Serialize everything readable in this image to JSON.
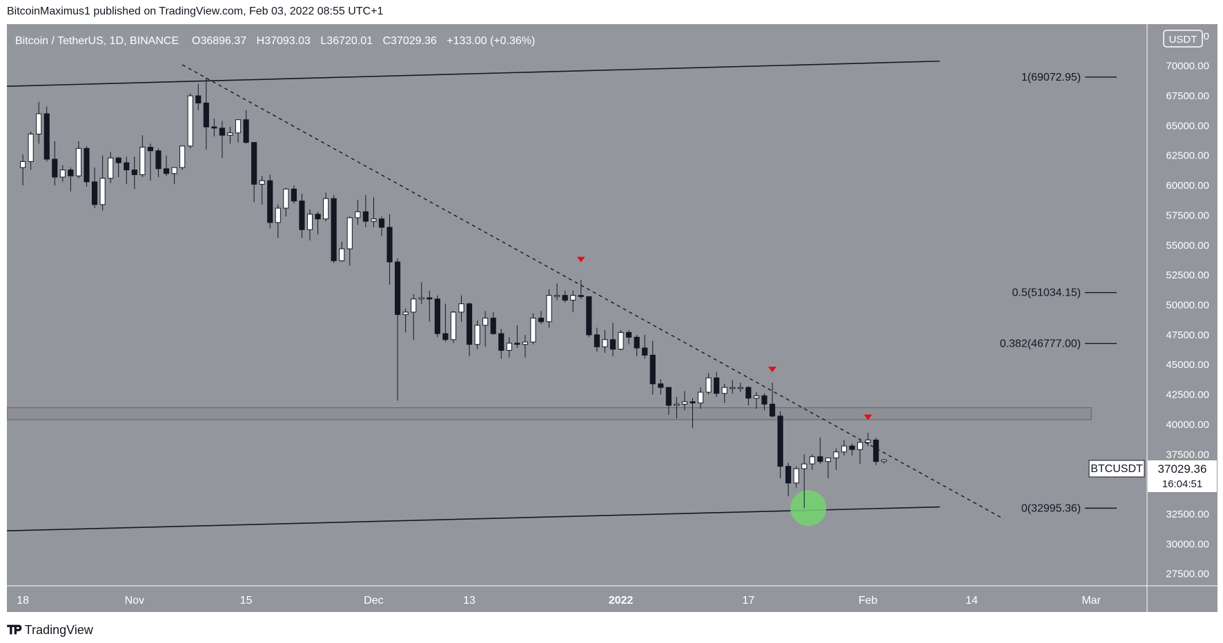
{
  "publisher_line": "BitcoinMaximus1 published on TradingView.com, Feb 03, 2022 08:55 UTC+1",
  "brand": {
    "name": "TradingView",
    "logo_icon": "tradingview-logo-icon"
  },
  "colors": {
    "chart_bg": "#94969d",
    "candle_up": "#ffffff",
    "candle_down": "#131722",
    "trendline": "#131722",
    "resistance_marker": "#e0111a",
    "support_highlight": "#74d46e",
    "horizontal_zone": "#8e9096"
  },
  "chart_data": {
    "type": "candlestick",
    "symbol_header": {
      "title": "Bitcoin / TetherUS, 1D, BINANCE",
      "o_label": "O",
      "o_value": "36896.37",
      "h_label": "H",
      "h_value": "37093.03",
      "l_label": "L",
      "l_value": "36720.01",
      "c_label": "C",
      "c_value": "37029.36",
      "change": "+133.00 (+0.36%)"
    },
    "price_axis": {
      "currency": "USDT",
      "ylim": [
        26500,
        73500
      ],
      "tick_labels": [
        "72500.00",
        "70000.00",
        "67500.00",
        "65000.00",
        "62500.00",
        "60000.00",
        "57500.00",
        "55000.00",
        "52500.00",
        "50000.00",
        "47500.00",
        "45000.00",
        "42500.00",
        "40000.00",
        "37500.00",
        "35000.00",
        "32500.00",
        "30000.00",
        "27500.00"
      ]
    },
    "time_axis": {
      "start_date": "2021-10-16",
      "end_date": "2022-03-08",
      "tick_labels": [
        "18",
        "Nov",
        "15",
        "Dec",
        "13",
        "2022",
        "17",
        "Feb",
        "14",
        "Mar"
      ],
      "tick_dates": [
        "2021-10-18",
        "2021-11-01",
        "2021-11-15",
        "2021-12-01",
        "2021-12-13",
        "2022-01-01",
        "2022-01-17",
        "2022-02-01",
        "2022-02-14",
        "2022-03-01"
      ]
    },
    "last_price": {
      "symbol": "BTCUSDT",
      "price": "37029.36",
      "countdown": "16:04:51"
    },
    "candles": [
      {
        "d": "2021-10-18",
        "o": 61500,
        "h": 62600,
        "l": 60000,
        "c": 62000
      },
      {
        "d": "2021-10-19",
        "o": 62000,
        "h": 64500,
        "l": 61300,
        "c": 64300
      },
      {
        "d": "2021-10-20",
        "o": 64300,
        "h": 67000,
        "l": 63500,
        "c": 66000
      },
      {
        "d": "2021-10-21",
        "o": 66000,
        "h": 66600,
        "l": 62000,
        "c": 62200
      },
      {
        "d": "2021-10-22",
        "o": 62200,
        "h": 63700,
        "l": 60000,
        "c": 60700
      },
      {
        "d": "2021-10-23",
        "o": 60700,
        "h": 61700,
        "l": 60300,
        "c": 61300
      },
      {
        "d": "2021-10-24",
        "o": 61300,
        "h": 61500,
        "l": 59500,
        "c": 60800
      },
      {
        "d": "2021-10-25",
        "o": 60800,
        "h": 63700,
        "l": 60600,
        "c": 63100
      },
      {
        "d": "2021-10-26",
        "o": 63100,
        "h": 63300,
        "l": 59900,
        "c": 60300
      },
      {
        "d": "2021-10-27",
        "o": 60300,
        "h": 61500,
        "l": 58100,
        "c": 58400
      },
      {
        "d": "2021-10-28",
        "o": 58400,
        "h": 62500,
        "l": 57900,
        "c": 60600
      },
      {
        "d": "2021-10-29",
        "o": 60600,
        "h": 62800,
        "l": 60200,
        "c": 62300
      },
      {
        "d": "2021-10-30",
        "o": 62300,
        "h": 62400,
        "l": 60700,
        "c": 61900
      },
      {
        "d": "2021-10-31",
        "o": 61900,
        "h": 62400,
        "l": 60100,
        "c": 61300
      },
      {
        "d": "2021-11-01",
        "o": 61300,
        "h": 62400,
        "l": 59700,
        "c": 60900
      },
      {
        "d": "2021-11-02",
        "o": 60900,
        "h": 64200,
        "l": 60700,
        "c": 63200
      },
      {
        "d": "2021-11-03",
        "o": 63200,
        "h": 63500,
        "l": 60400,
        "c": 62900
      },
      {
        "d": "2021-11-04",
        "o": 62900,
        "h": 63100,
        "l": 60700,
        "c": 61400
      },
      {
        "d": "2021-11-05",
        "o": 61400,
        "h": 62500,
        "l": 60800,
        "c": 61000
      },
      {
        "d": "2021-11-06",
        "o": 61000,
        "h": 61500,
        "l": 60100,
        "c": 61500
      },
      {
        "d": "2021-11-07",
        "o": 61500,
        "h": 63300,
        "l": 61300,
        "c": 63300
      },
      {
        "d": "2021-11-08",
        "o": 63300,
        "h": 67700,
        "l": 63100,
        "c": 67500
      },
      {
        "d": "2021-11-09",
        "o": 67500,
        "h": 68500,
        "l": 66300,
        "c": 66900
      },
      {
        "d": "2021-11-10",
        "o": 66900,
        "h": 69000,
        "l": 63000,
        "c": 64900
      },
      {
        "d": "2021-11-11",
        "o": 64900,
        "h": 65600,
        "l": 64100,
        "c": 64800
      },
      {
        "d": "2021-11-12",
        "o": 64800,
        "h": 65400,
        "l": 62300,
        "c": 64200
      },
      {
        "d": "2021-11-13",
        "o": 64200,
        "h": 64900,
        "l": 63500,
        "c": 64400
      },
      {
        "d": "2021-11-14",
        "o": 64400,
        "h": 65500,
        "l": 63600,
        "c": 65500
      },
      {
        "d": "2021-11-15",
        "o": 65500,
        "h": 66300,
        "l": 63500,
        "c": 63600
      },
      {
        "d": "2021-11-16",
        "o": 63600,
        "h": 63600,
        "l": 58600,
        "c": 60100
      },
      {
        "d": "2021-11-17",
        "o": 60100,
        "h": 60800,
        "l": 58400,
        "c": 60400
      },
      {
        "d": "2021-11-18",
        "o": 60400,
        "h": 60900,
        "l": 56400,
        "c": 56900
      },
      {
        "d": "2021-11-19",
        "o": 56900,
        "h": 58400,
        "l": 55600,
        "c": 58100
      },
      {
        "d": "2021-11-20",
        "o": 58100,
        "h": 59800,
        "l": 57400,
        "c": 59700
      },
      {
        "d": "2021-11-21",
        "o": 59700,
        "h": 60000,
        "l": 58500,
        "c": 58700
      },
      {
        "d": "2021-11-22",
        "o": 58700,
        "h": 59300,
        "l": 55600,
        "c": 56300
      },
      {
        "d": "2021-11-23",
        "o": 56300,
        "h": 58000,
        "l": 55400,
        "c": 57600
      },
      {
        "d": "2021-11-24",
        "o": 57600,
        "h": 57800,
        "l": 55900,
        "c": 57200
      },
      {
        "d": "2021-11-25",
        "o": 57200,
        "h": 59400,
        "l": 57000,
        "c": 58900
      },
      {
        "d": "2021-11-26",
        "o": 58900,
        "h": 59200,
        "l": 53500,
        "c": 53700
      },
      {
        "d": "2021-11-27",
        "o": 53700,
        "h": 55300,
        "l": 53600,
        "c": 54700
      },
      {
        "d": "2021-11-28",
        "o": 54700,
        "h": 57400,
        "l": 53300,
        "c": 57300
      },
      {
        "d": "2021-11-29",
        "o": 57300,
        "h": 58800,
        "l": 56700,
        "c": 57800
      },
      {
        "d": "2021-11-30",
        "o": 57800,
        "h": 59200,
        "l": 56500,
        "c": 57000
      },
      {
        "d": "2021-12-01",
        "o": 57000,
        "h": 59000,
        "l": 56500,
        "c": 57200
      },
      {
        "d": "2021-12-02",
        "o": 57200,
        "h": 57400,
        "l": 55800,
        "c": 56500
      },
      {
        "d": "2021-12-03",
        "o": 56500,
        "h": 57600,
        "l": 51700,
        "c": 53600
      },
      {
        "d": "2021-12-04",
        "o": 53600,
        "h": 53900,
        "l": 42000,
        "c": 49200
      },
      {
        "d": "2021-12-05",
        "o": 49200,
        "h": 49700,
        "l": 47700,
        "c": 49400
      },
      {
        "d": "2021-12-06",
        "o": 49400,
        "h": 50900,
        "l": 47100,
        "c": 50500
      },
      {
        "d": "2021-12-07",
        "o": 50500,
        "h": 51900,
        "l": 50100,
        "c": 50600
      },
      {
        "d": "2021-12-08",
        "o": 50600,
        "h": 51200,
        "l": 48600,
        "c": 50500
      },
      {
        "d": "2021-12-09",
        "o": 50500,
        "h": 50800,
        "l": 47300,
        "c": 47600
      },
      {
        "d": "2021-12-10",
        "o": 47600,
        "h": 50100,
        "l": 46900,
        "c": 47100
      },
      {
        "d": "2021-12-11",
        "o": 47100,
        "h": 49500,
        "l": 46800,
        "c": 49400
      },
      {
        "d": "2021-12-12",
        "o": 49400,
        "h": 50800,
        "l": 48600,
        "c": 50100
      },
      {
        "d": "2021-12-13",
        "o": 50100,
        "h": 50200,
        "l": 45700,
        "c": 46700
      },
      {
        "d": "2021-12-14",
        "o": 46700,
        "h": 48700,
        "l": 46300,
        "c": 48300
      },
      {
        "d": "2021-12-15",
        "o": 48300,
        "h": 49500,
        "l": 46500,
        "c": 48900
      },
      {
        "d": "2021-12-16",
        "o": 48900,
        "h": 49400,
        "l": 47500,
        "c": 47600
      },
      {
        "d": "2021-12-17",
        "o": 47600,
        "h": 48000,
        "l": 45500,
        "c": 46200
      },
      {
        "d": "2021-12-18",
        "o": 46200,
        "h": 47300,
        "l": 45600,
        "c": 46800
      },
      {
        "d": "2021-12-19",
        "o": 46800,
        "h": 48300,
        "l": 46400,
        "c": 46700
      },
      {
        "d": "2021-12-20",
        "o": 46700,
        "h": 47500,
        "l": 45600,
        "c": 46900
      },
      {
        "d": "2021-12-21",
        "o": 46900,
        "h": 49300,
        "l": 46700,
        "c": 48900
      },
      {
        "d": "2021-12-22",
        "o": 48900,
        "h": 49500,
        "l": 48400,
        "c": 48600
      },
      {
        "d": "2021-12-23",
        "o": 48600,
        "h": 51300,
        "l": 48100,
        "c": 50800
      },
      {
        "d": "2021-12-24",
        "o": 50800,
        "h": 51800,
        "l": 50400,
        "c": 50800
      },
      {
        "d": "2021-12-25",
        "o": 50800,
        "h": 51200,
        "l": 50200,
        "c": 50400
      },
      {
        "d": "2021-12-26",
        "o": 50400,
        "h": 51200,
        "l": 49400,
        "c": 50800
      },
      {
        "d": "2021-12-27",
        "o": 50800,
        "h": 52100,
        "l": 50500,
        "c": 50700
      },
      {
        "d": "2021-12-28",
        "o": 50700,
        "h": 50700,
        "l": 47300,
        "c": 47500
      },
      {
        "d": "2021-12-29",
        "o": 47500,
        "h": 48100,
        "l": 46100,
        "c": 46500
      },
      {
        "d": "2021-12-30",
        "o": 46500,
        "h": 47900,
        "l": 46000,
        "c": 47100
      },
      {
        "d": "2021-12-31",
        "o": 47100,
        "h": 48500,
        "l": 45700,
        "c": 46300
      },
      {
        "d": "2022-01-01",
        "o": 46300,
        "h": 47900,
        "l": 46200,
        "c": 47700
      },
      {
        "d": "2022-01-02",
        "o": 47700,
        "h": 47900,
        "l": 46700,
        "c": 47300
      },
      {
        "d": "2022-01-03",
        "o": 47300,
        "h": 47500,
        "l": 45700,
        "c": 46400
      },
      {
        "d": "2022-01-04",
        "o": 46400,
        "h": 47500,
        "l": 45500,
        "c": 45800
      },
      {
        "d": "2022-01-05",
        "o": 45800,
        "h": 47000,
        "l": 42500,
        "c": 43400
      },
      {
        "d": "2022-01-06",
        "o": 43400,
        "h": 43800,
        "l": 42500,
        "c": 43100
      },
      {
        "d": "2022-01-07",
        "o": 43100,
        "h": 43100,
        "l": 40800,
        "c": 41600
      },
      {
        "d": "2022-01-08",
        "o": 41600,
        "h": 42300,
        "l": 40500,
        "c": 41700
      },
      {
        "d": "2022-01-09",
        "o": 41700,
        "h": 42800,
        "l": 41200,
        "c": 41900
      },
      {
        "d": "2022-01-10",
        "o": 41900,
        "h": 42200,
        "l": 39700,
        "c": 41800
      },
      {
        "d": "2022-01-11",
        "o": 41800,
        "h": 43100,
        "l": 41300,
        "c": 42700
      },
      {
        "d": "2022-01-12",
        "o": 42700,
        "h": 44300,
        "l": 42500,
        "c": 43900
      },
      {
        "d": "2022-01-13",
        "o": 43900,
        "h": 44400,
        "l": 42300,
        "c": 42600
      },
      {
        "d": "2022-01-14",
        "o": 42600,
        "h": 43400,
        "l": 41800,
        "c": 43100
      },
      {
        "d": "2022-01-15",
        "o": 43100,
        "h": 43700,
        "l": 42600,
        "c": 43100
      },
      {
        "d": "2022-01-16",
        "o": 43100,
        "h": 43500,
        "l": 42700,
        "c": 43100
      },
      {
        "d": "2022-01-17",
        "o": 43100,
        "h": 43200,
        "l": 41600,
        "c": 42200
      },
      {
        "d": "2022-01-18",
        "o": 42200,
        "h": 42700,
        "l": 41300,
        "c": 42400
      },
      {
        "d": "2022-01-19",
        "o": 42400,
        "h": 42600,
        "l": 41200,
        "c": 41700
      },
      {
        "d": "2022-01-20",
        "o": 41700,
        "h": 43500,
        "l": 40600,
        "c": 40700
      },
      {
        "d": "2022-01-21",
        "o": 40700,
        "h": 41100,
        "l": 35500,
        "c": 36500
      },
      {
        "d": "2022-01-22",
        "o": 36500,
        "h": 36800,
        "l": 34000,
        "c": 35100
      },
      {
        "d": "2022-01-23",
        "o": 35100,
        "h": 36500,
        "l": 34700,
        "c": 36300
      },
      {
        "d": "2022-01-24",
        "o": 36300,
        "h": 37500,
        "l": 33000,
        "c": 36700
      },
      {
        "d": "2022-01-25",
        "o": 36700,
        "h": 37500,
        "l": 36200,
        "c": 37300
      },
      {
        "d": "2022-01-26",
        "o": 37300,
        "h": 38900,
        "l": 36700,
        "c": 36900
      },
      {
        "d": "2022-01-27",
        "o": 36900,
        "h": 37200,
        "l": 35500,
        "c": 37200
      },
      {
        "d": "2022-01-28",
        "o": 37200,
        "h": 38000,
        "l": 36200,
        "c": 37700
      },
      {
        "d": "2022-01-29",
        "o": 37700,
        "h": 38700,
        "l": 37400,
        "c": 38200
      },
      {
        "d": "2022-01-30",
        "o": 38200,
        "h": 38400,
        "l": 37400,
        "c": 37900
      },
      {
        "d": "2022-01-31",
        "o": 37900,
        "h": 38700,
        "l": 36700,
        "c": 38500
      },
      {
        "d": "2022-02-01",
        "o": 38500,
        "h": 39300,
        "l": 38200,
        "c": 38700
      },
      {
        "d": "2022-02-02",
        "o": 38700,
        "h": 38900,
        "l": 36600,
        "c": 36900
      },
      {
        "d": "2022-02-03",
        "o": 36896.37,
        "h": 37093.03,
        "l": 36720.01,
        "c": 37029.36
      }
    ],
    "fibonacci_levels": [
      {
        "label": "1(69072.95)",
        "price": 69072.95
      },
      {
        "label": "0.5(51034.15)",
        "price": 51034.15
      },
      {
        "label": "0.382(46777.00)",
        "price": 46777.0
      },
      {
        "label": "0(32995.36)",
        "price": 32995.36
      }
    ],
    "trendlines": [
      {
        "name": "channel-top",
        "style": "solid",
        "from": {
          "d": "2021-10-16",
          "p": 68300
        },
        "to": {
          "d": "2022-02-10",
          "p": 70400
        }
      },
      {
        "name": "channel-bottom",
        "style": "solid",
        "from": {
          "d": "2021-10-16",
          "p": 31100
        },
        "to": {
          "d": "2022-02-10",
          "p": 33100
        }
      },
      {
        "name": "descending-resistance",
        "style": "dashed",
        "from": {
          "d": "2021-11-07",
          "p": 70100
        },
        "to": {
          "d": "2022-02-18",
          "p": 32100
        }
      }
    ],
    "horizontal_zone": {
      "from_date": "2021-10-16",
      "to_date": "2022-03-01",
      "low": 40400,
      "high": 41400
    },
    "resistance_markers": [
      {
        "d": "2021-12-27",
        "p": 53800
      },
      {
        "d": "2022-01-20",
        "p": 44600
      },
      {
        "d": "2022-02-01",
        "p": 40600
      }
    ],
    "support_highlight": {
      "d": "2022-01-24",
      "p": 33000
    }
  }
}
